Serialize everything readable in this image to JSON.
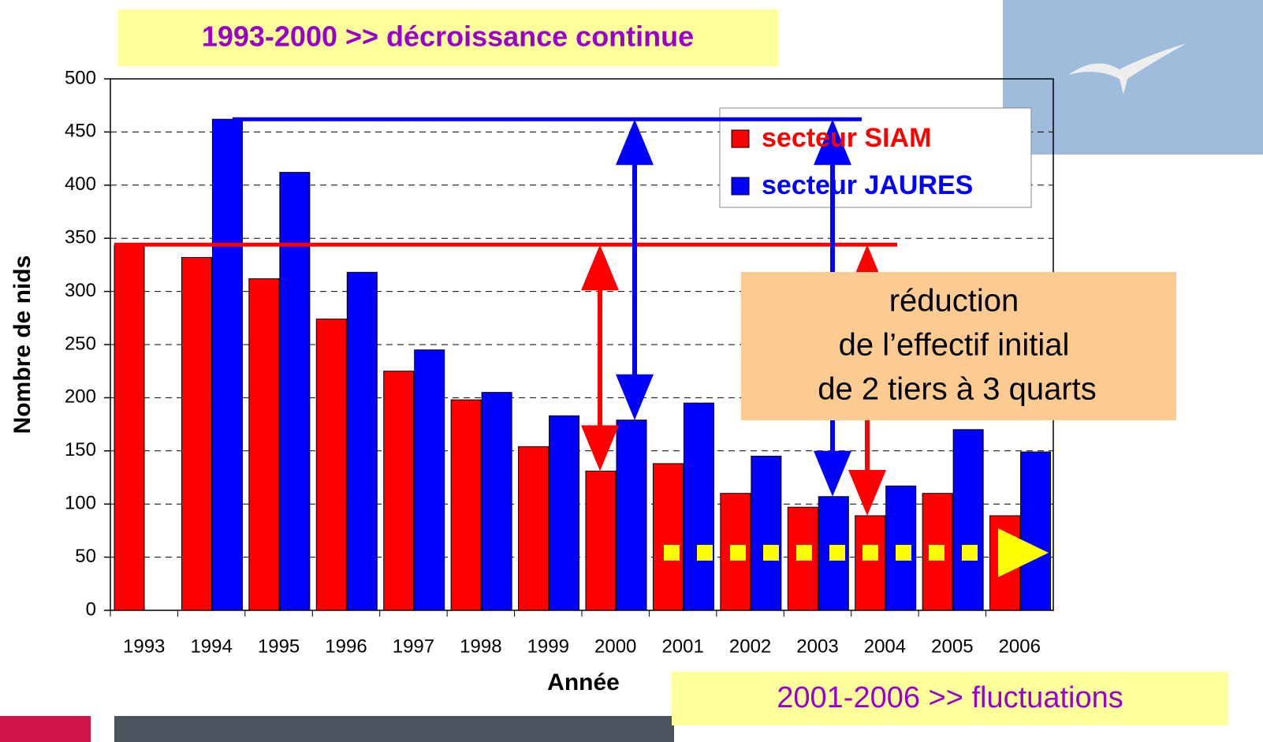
{
  "chart_data": {
    "type": "bar",
    "title": "1993-2000 >> décroissance continue",
    "subtitle": "2001-2006 >> fluctuations",
    "annotation": [
      "réduction",
      "de l’effectif initial",
      "de 2 tiers à 3 quarts"
    ],
    "x_label": "Année",
    "y_label": "Nombre de nids",
    "categories": [
      "1993",
      "1994",
      "1995",
      "1996",
      "1997",
      "1998",
      "1999",
      "2000",
      "2001",
      "2002",
      "2003",
      "2004",
      "2005",
      "2006"
    ],
    "series": [
      {
        "name": "secteur SIAM",
        "color": "#ff0000",
        "values": [
          344,
          332,
          312,
          274,
          225,
          198,
          154,
          131,
          138,
          110,
          97,
          89,
          110,
          89
        ]
      },
      {
        "name": "secteur JAURES",
        "color": "#0000ff",
        "values": [
          null,
          462,
          412,
          318,
          245,
          205,
          183,
          179,
          195,
          145,
          107,
          117,
          170,
          149
        ]
      }
    ],
    "ylim": [
      0,
      500
    ],
    "yticks": [
      0,
      50,
      100,
      150,
      200,
      250,
      300,
      350,
      400,
      450,
      500
    ],
    "grid": true,
    "legend": "upper right"
  }
}
